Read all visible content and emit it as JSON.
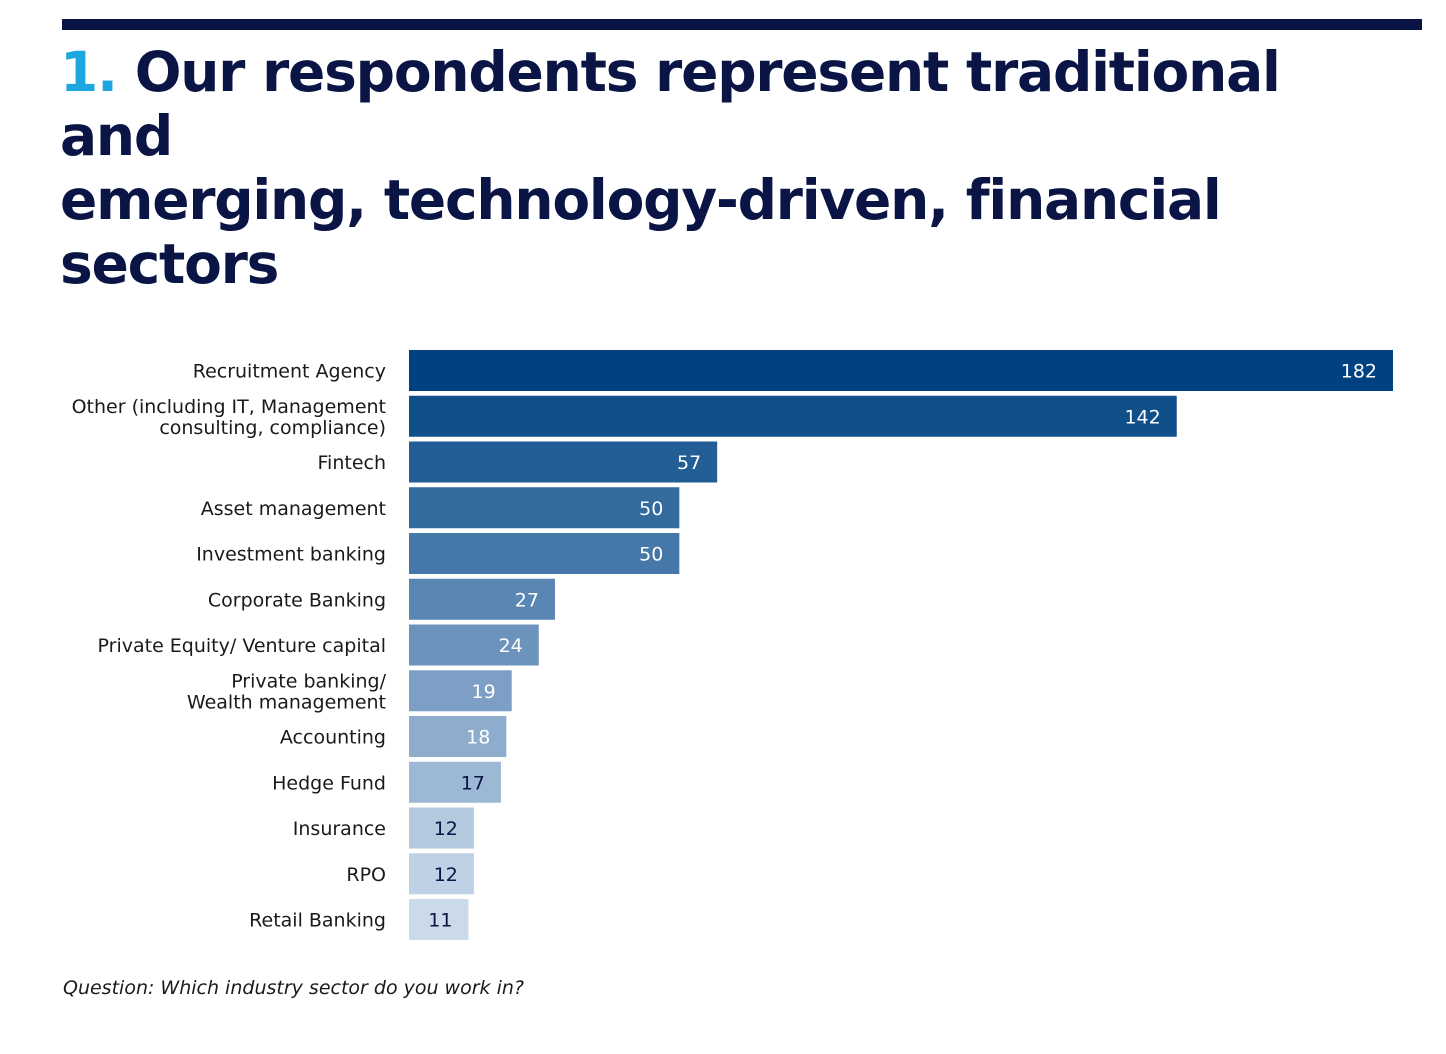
{
  "header": {
    "number": "1.",
    "title_line1": "Our respondents represent traditional and",
    "title_line2": "emerging, technology-driven, financial sectors"
  },
  "chart_data": {
    "type": "bar",
    "orientation": "horizontal",
    "categories": [
      [
        "Recruitment Agency"
      ],
      [
        "Other (including IT, Management",
        "consulting, compliance)"
      ],
      [
        "Fintech"
      ],
      [
        "Asset management"
      ],
      [
        "Investment banking"
      ],
      [
        "Corporate Banking"
      ],
      [
        "Private Equity/ Venture capital"
      ],
      [
        "Private banking/",
        "Wealth management"
      ],
      [
        "Accounting"
      ],
      [
        "Hedge Fund"
      ],
      [
        "Insurance"
      ],
      [
        "RPO"
      ],
      [
        "Retail Banking"
      ]
    ],
    "values": [
      182,
      142,
      57,
      50,
      50,
      27,
      24,
      19,
      18,
      17,
      12,
      12,
      11
    ],
    "bar_colors": [
      "#004181",
      "#0f4f8a",
      "#225d95",
      "#336b9f",
      "#4677a9",
      "#5a86b3",
      "#6b93bc",
      "#7e9fc5",
      "#8eadcd",
      "#9cb8d4",
      "#b3c9de",
      "#bfd1e4",
      "#cbdae9"
    ],
    "value_label_colors": [
      "#ffffff",
      "#ffffff",
      "#ffffff",
      "#ffffff",
      "#ffffff",
      "#ffffff",
      "#ffffff",
      "#ffffff",
      "#ffffff",
      "#0a1445",
      "#0a1445",
      "#0a1445",
      "#0a1445"
    ],
    "xlim": [
      0,
      182
    ],
    "grid": false,
    "legend": "none",
    "title": "",
    "xlabel": "",
    "ylabel": ""
  },
  "footnote": "Question: Which industry sector do you work in?"
}
